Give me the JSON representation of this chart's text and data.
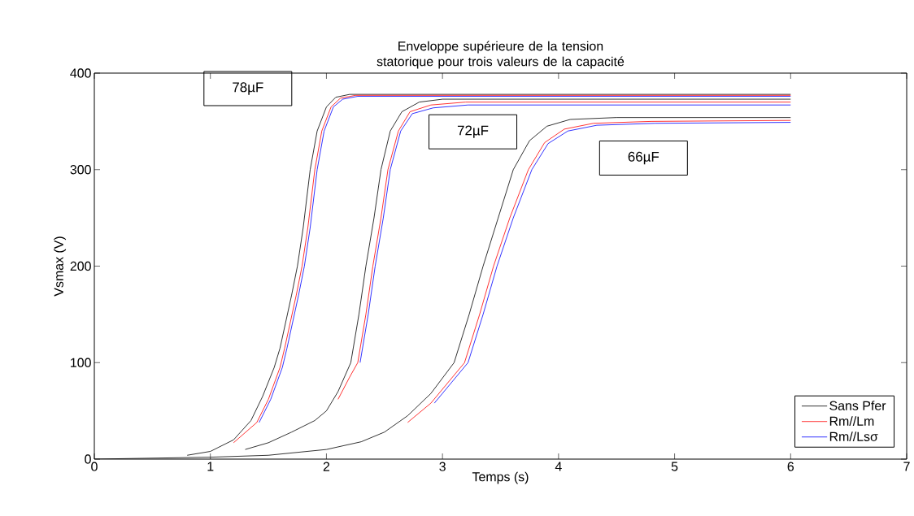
{
  "chart_data": {
    "type": "line",
    "title": "Enveloppe supérieure de la tension statorique pour trois valeurs de la capacité",
    "xlabel": "Temps (s)",
    "ylabel": "Vsmax (V)",
    "xlim": [
      0,
      7
    ],
    "ylim": [
      0,
      400
    ],
    "xticks": [
      0,
      1,
      2,
      3,
      4,
      5,
      6,
      7
    ],
    "yticks": [
      0,
      100,
      200,
      300,
      400
    ],
    "legend": "bottom right",
    "line_style": "solid",
    "series": [
      {
        "name": "Sans Pfer",
        "color": "#000000",
        "x": [
          0.8,
          1,
          1.2,
          1.35,
          1.45,
          1.55,
          1.6,
          1.7,
          1.75,
          1.8,
          1.86,
          1.92,
          2.0,
          2.08,
          2.2,
          6
        ],
        "values": [
          4,
          8,
          20,
          40,
          65,
          95,
          115,
          170,
          200,
          240,
          300,
          340,
          365,
          375,
          378,
          378
        ]
      },
      {
        "name": "Rm//Lm",
        "color": "#ff0000",
        "x": [
          1.2,
          1.4,
          1.5,
          1.6,
          1.64,
          1.74,
          1.79,
          1.84,
          1.9,
          1.96,
          2.04,
          2.12,
          2.25,
          6
        ],
        "values": [
          17,
          38,
          62,
          95,
          115,
          170,
          200,
          240,
          300,
          340,
          365,
          374,
          377,
          377
        ]
      },
      {
        "name": "Rm//Lsσ",
        "color": "#0000ff",
        "x": [
          1.42,
          1.52,
          1.62,
          1.66,
          1.76,
          1.81,
          1.86,
          1.92,
          1.98,
          2.06,
          2.14,
          2.27,
          6
        ],
        "values": [
          38,
          62,
          95,
          115,
          170,
          200,
          240,
          300,
          340,
          365,
          373,
          376,
          376
        ]
      },
      {
        "color": "#000000",
        "x": [
          1.3,
          1.5,
          1.7,
          1.9,
          2.0,
          2.1,
          2.21,
          2.28,
          2.34,
          2.41,
          2.47,
          2.55,
          2.65,
          2.8,
          3.0,
          6
        ],
        "values": [
          10,
          17,
          28,
          40,
          50,
          70,
          100,
          150,
          200,
          250,
          300,
          340,
          360,
          370,
          373,
          373
        ]
      },
      {
        "color": "#ff0000",
        "x": [
          2.1,
          2.2,
          2.27,
          2.34,
          2.4,
          2.47,
          2.53,
          2.62,
          2.72,
          2.9,
          3.2,
          6
        ],
        "values": [
          62,
          85,
          100,
          150,
          200,
          250,
          300,
          340,
          360,
          367,
          370,
          370
        ]
      },
      {
        "color": "#0000ff",
        "x": [
          2.29,
          2.36,
          2.42,
          2.49,
          2.55,
          2.64,
          2.74,
          2.92,
          3.22,
          6
        ],
        "values": [
          100,
          150,
          200,
          250,
          300,
          340,
          358,
          364,
          367,
          367
        ]
      },
      {
        "color": "#000000",
        "x": [
          0,
          1,
          1.5,
          2,
          2.3,
          2.5,
          2.7,
          2.9,
          3.1,
          3.23,
          3.35,
          3.48,
          3.61,
          3.75,
          3.9,
          4.1,
          4.5,
          6
        ],
        "values": [
          0,
          2,
          4,
          10,
          18,
          28,
          45,
          68,
          100,
          150,
          200,
          250,
          300,
          330,
          345,
          352,
          354,
          354
        ]
      },
      {
        "color": "#ff0000",
        "x": [
          2.7,
          2.9,
          3.19,
          3.32,
          3.44,
          3.58,
          3.74,
          3.88,
          4.05,
          4.3,
          4.8,
          6
        ],
        "values": [
          38,
          58,
          100,
          150,
          200,
          250,
          300,
          328,
          342,
          348,
          350,
          351
        ]
      },
      {
        "color": "#0000ff",
        "x": [
          2.93,
          3.22,
          3.35,
          3.47,
          3.61,
          3.77,
          3.91,
          4.08,
          4.33,
          4.83,
          6
        ],
        "values": [
          58,
          100,
          150,
          200,
          250,
          300,
          327,
          340,
          346,
          348,
          349
        ]
      }
    ],
    "annotations": [
      "78µF",
      "72µF",
      "66µF"
    ]
  }
}
